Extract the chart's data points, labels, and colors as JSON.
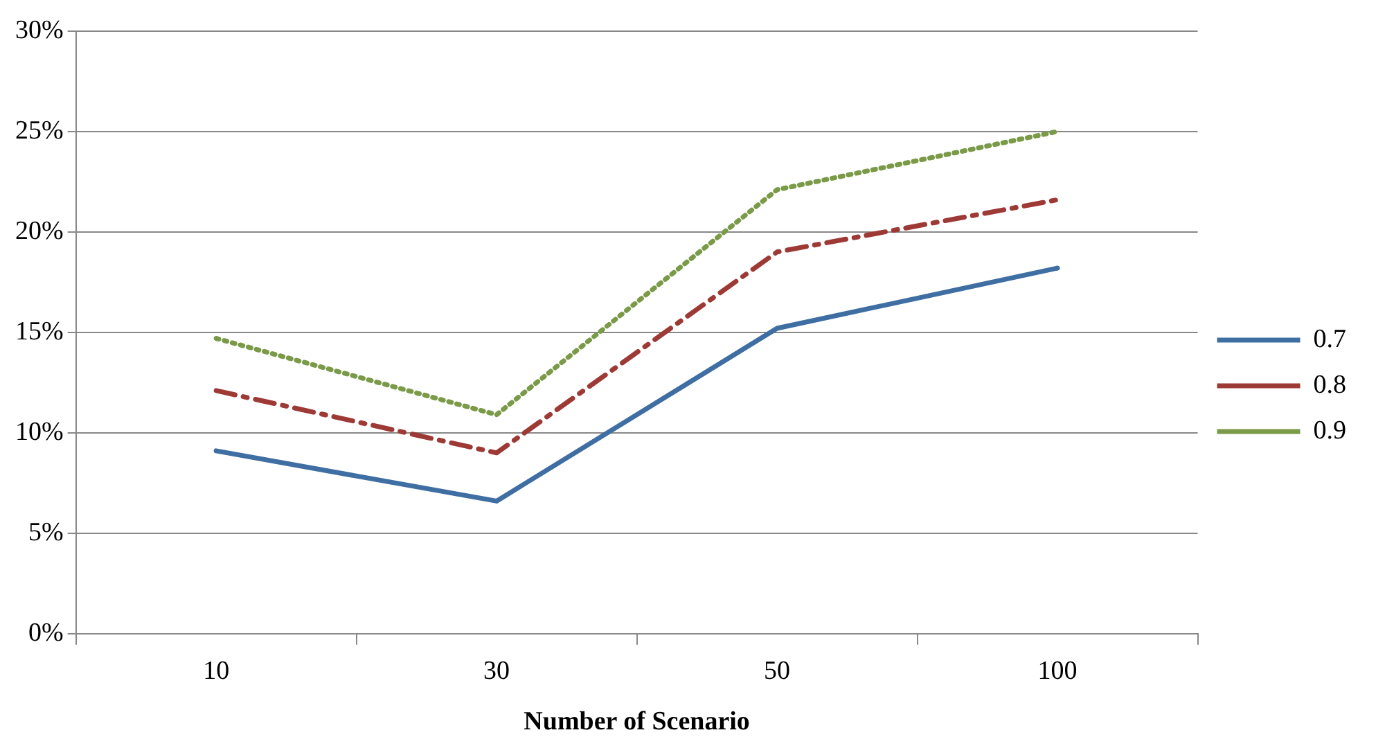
{
  "chart_data": {
    "type": "line",
    "xlabel": "Number of Scenario",
    "categories": [
      "10",
      "30",
      "50",
      "100"
    ],
    "series": [
      {
        "name": "0.7",
        "color": "#3f6ea3",
        "line_style": "solid",
        "values": [
          9.1,
          6.6,
          15.2,
          18.2
        ]
      },
      {
        "name": "0.8",
        "color": "#9e3a36",
        "line_style": "dashed",
        "values": [
          12.1,
          9.0,
          19.0,
          21.6
        ]
      },
      {
        "name": "0.9",
        "color": "#7a9a48",
        "line_style": "dotted",
        "values": [
          14.7,
          10.9,
          22.1,
          25.0
        ]
      }
    ],
    "ylim": [
      0,
      30
    ],
    "yticks": [
      {
        "value": 0,
        "label": "0%"
      },
      {
        "value": 5,
        "label": "5%"
      },
      {
        "value": 10,
        "label": "10%"
      },
      {
        "value": 15,
        "label": "15%"
      },
      {
        "value": 20,
        "label": "20%"
      },
      {
        "value": 25,
        "label": "25%"
      },
      {
        "value": 30,
        "label": "30%"
      }
    ],
    "grid": "y",
    "legend": "right",
    "marker": "none"
  }
}
